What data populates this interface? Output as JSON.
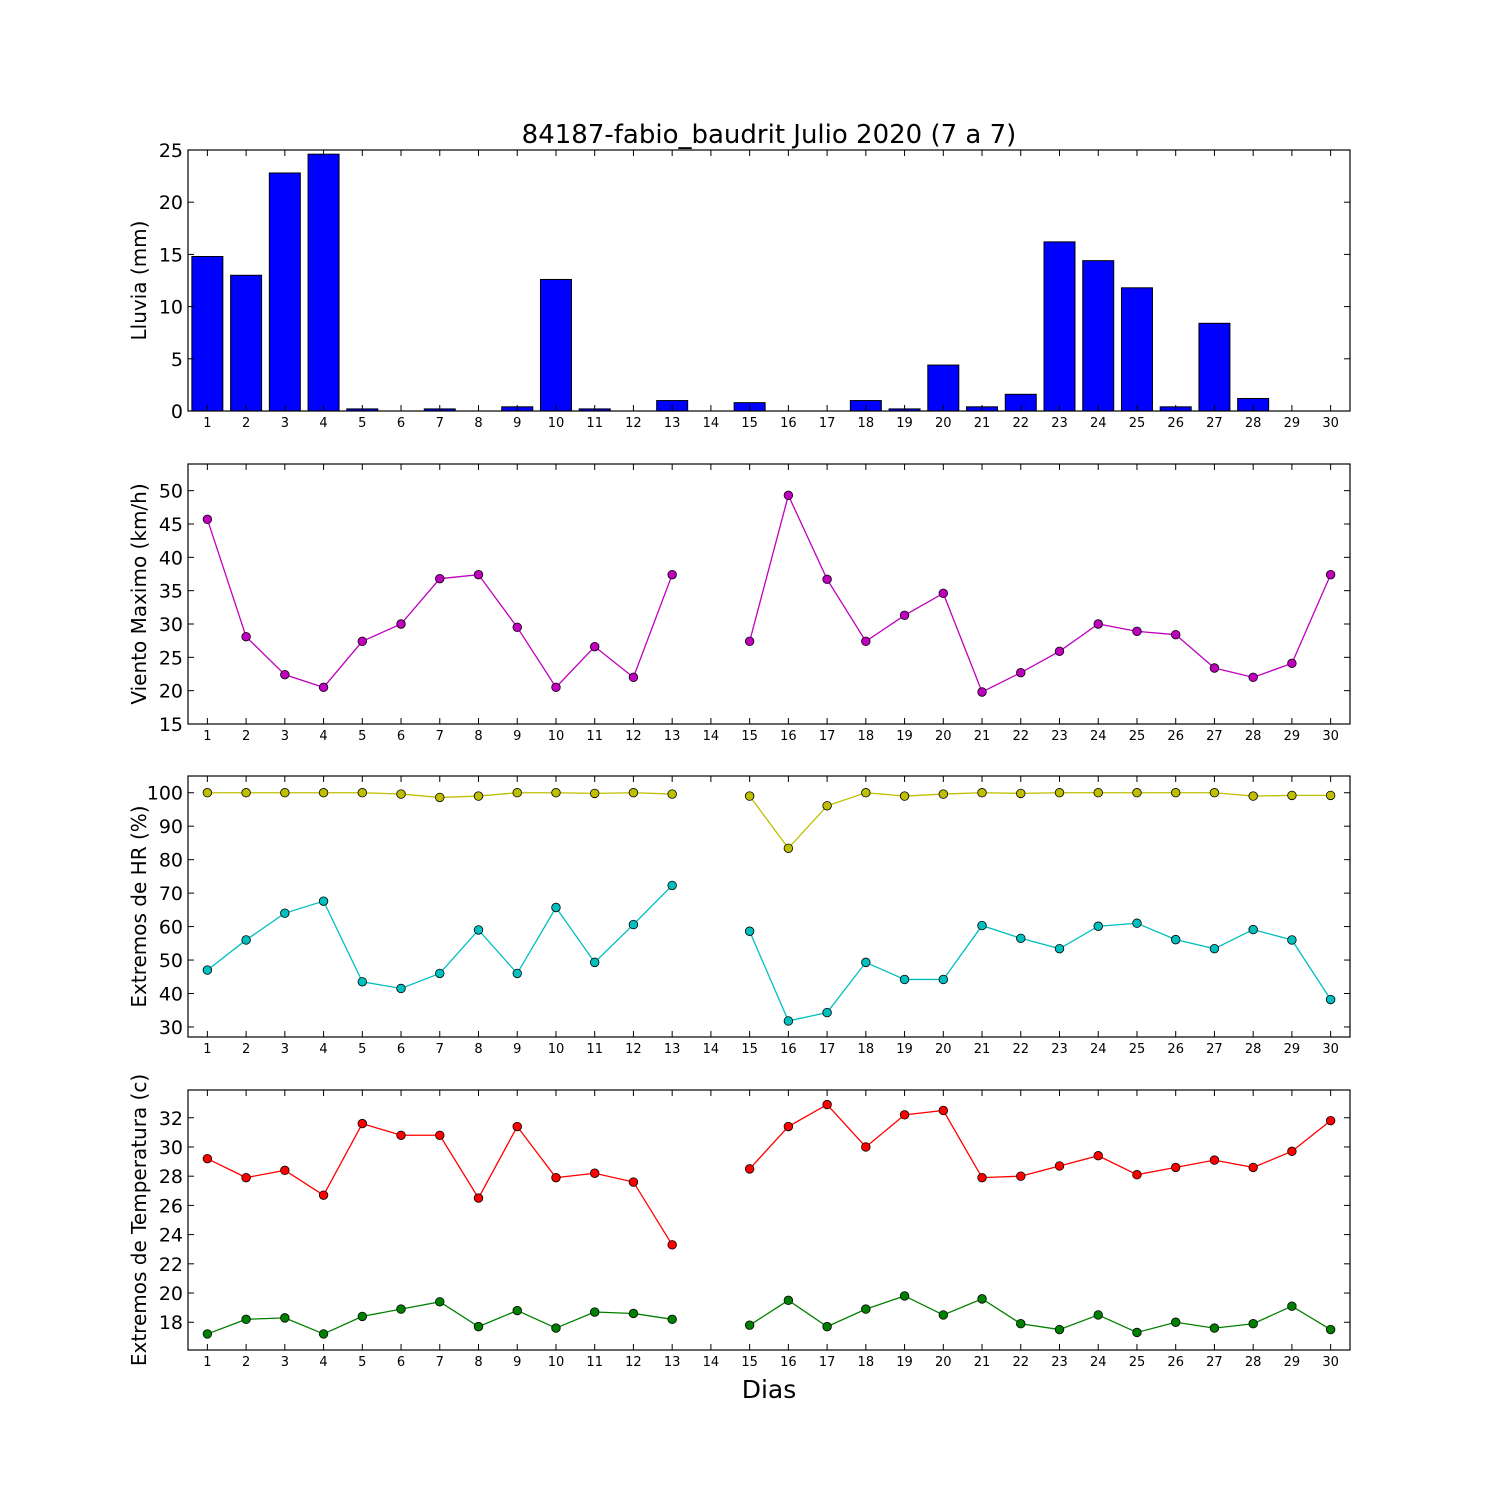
{
  "figure": {
    "title": "84187-fabio_baudrit Julio 2020  (7 a 7)",
    "xlabel": "Dias"
  },
  "chart_data": [
    {
      "type": "bar",
      "ylabel": "Lluvia (mm)",
      "ylim": [
        0,
        25
      ],
      "yticks": [
        0,
        5,
        10,
        15,
        20,
        25
      ],
      "categories": [
        "1",
        "2",
        "3",
        "4",
        "5",
        "6",
        "7",
        "8",
        "9",
        "10",
        "11",
        "12",
        "13",
        "14",
        "15",
        "16",
        "17",
        "18",
        "19",
        "20",
        "21",
        "22",
        "23",
        "24",
        "25",
        "26",
        "27",
        "28",
        "29",
        "30"
      ],
      "series": [
        {
          "color": "#0000ff",
          "values": [
            14.8,
            13.0,
            22.8,
            24.6,
            0.2,
            0.0,
            0.2,
            0.0,
            0.4,
            12.6,
            0.2,
            0.0,
            1.0,
            0.0,
            0.8,
            0.0,
            0.0,
            1.0,
            0.2,
            4.4,
            0.4,
            1.6,
            16.2,
            14.4,
            11.8,
            0.4,
            8.4,
            1.2,
            0.0,
            0.0
          ]
        }
      ]
    },
    {
      "type": "line",
      "ylabel": "Viento Maximo (km/h)",
      "ylim": [
        15,
        54
      ],
      "yticks": [
        15,
        20,
        25,
        30,
        35,
        40,
        45,
        50
      ],
      "categories": [
        "1",
        "2",
        "3",
        "4",
        "5",
        "6",
        "7",
        "8",
        "9",
        "10",
        "11",
        "12",
        "13",
        "14",
        "15",
        "16",
        "17",
        "18",
        "19",
        "20",
        "21",
        "22",
        "23",
        "24",
        "25",
        "26",
        "27",
        "28",
        "29",
        "30"
      ],
      "series": [
        {
          "color": "#bf00bf",
          "values": [
            45.7,
            28.1,
            22.4,
            20.5,
            27.4,
            30.0,
            36.8,
            37.4,
            29.5,
            20.5,
            26.6,
            22.0,
            37.4,
            null,
            27.4,
            49.3,
            36.7,
            27.4,
            31.3,
            34.6,
            19.8,
            22.7,
            25.9,
            30.0,
            28.9,
            28.4,
            23.4,
            22.0,
            24.1,
            37.4
          ]
        }
      ]
    },
    {
      "type": "line",
      "ylabel": "Extremos de HR (%)",
      "ylim": [
        27,
        105
      ],
      "yticks": [
        30,
        40,
        50,
        60,
        70,
        80,
        90,
        100
      ],
      "categories": [
        "1",
        "2",
        "3",
        "4",
        "5",
        "6",
        "7",
        "8",
        "9",
        "10",
        "11",
        "12",
        "13",
        "14",
        "15",
        "16",
        "17",
        "18",
        "19",
        "20",
        "21",
        "22",
        "23",
        "24",
        "25",
        "26",
        "27",
        "28",
        "29",
        "30"
      ],
      "series": [
        {
          "color": "#bfbf00",
          "values": [
            100,
            100,
            100,
            100,
            100,
            99.6,
            98.6,
            99.0,
            100,
            100,
            99.8,
            100,
            99.6,
            null,
            99.0,
            83.4,
            96.1,
            100,
            99.0,
            99.6,
            100,
            99.8,
            100,
            100,
            100,
            100,
            100,
            99.0,
            99.2,
            99.2
          ]
        },
        {
          "color": "#00bfbf",
          "values": [
            47,
            56,
            64,
            67.6,
            43.5,
            41.5,
            46,
            59,
            46,
            65.7,
            49.3,
            60.6,
            72.3,
            null,
            58.6,
            31.8,
            34.3,
            49.3,
            44.2,
            44.2,
            60.3,
            56.5,
            53.4,
            60.1,
            61.0,
            56.1,
            53.4,
            59.1,
            56.0,
            38.2
          ]
        }
      ]
    },
    {
      "type": "line",
      "ylabel": "Extremos de Temperatura (c)",
      "ylim": [
        16.1,
        33.9
      ],
      "yticks": [
        18,
        20,
        22,
        24,
        26,
        28,
        30,
        32
      ],
      "categories": [
        "1",
        "2",
        "3",
        "4",
        "5",
        "6",
        "7",
        "8",
        "9",
        "10",
        "11",
        "12",
        "13",
        "14",
        "15",
        "16",
        "17",
        "18",
        "19",
        "20",
        "21",
        "22",
        "23",
        "24",
        "25",
        "26",
        "27",
        "28",
        "29",
        "30"
      ],
      "series": [
        {
          "color": "#ff0000",
          "values": [
            29.2,
            27.9,
            28.4,
            26.7,
            31.6,
            30.8,
            30.8,
            26.5,
            31.4,
            27.9,
            28.2,
            27.6,
            23.3,
            null,
            28.5,
            31.4,
            32.9,
            30.0,
            32.2,
            32.5,
            27.9,
            28.0,
            28.7,
            29.4,
            28.1,
            28.6,
            29.1,
            28.6,
            29.7,
            31.8
          ]
        },
        {
          "color": "#008000",
          "values": [
            17.2,
            18.2,
            18.3,
            17.2,
            18.4,
            18.9,
            19.4,
            17.7,
            18.8,
            17.6,
            18.7,
            18.6,
            18.2,
            null,
            17.8,
            19.5,
            17.7,
            18.9,
            19.8,
            18.5,
            19.6,
            17.9,
            17.5,
            18.5,
            17.3,
            18.0,
            17.6,
            17.9,
            19.1,
            17.5
          ]
        }
      ]
    }
  ]
}
